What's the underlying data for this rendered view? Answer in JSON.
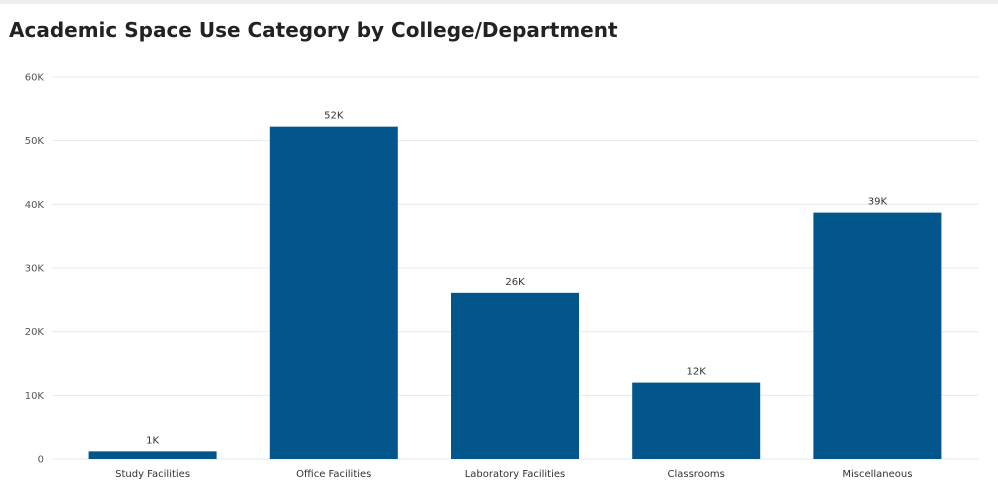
{
  "chart_data": {
    "type": "bar",
    "title": "Academic Space Use Category by College/Department",
    "categories": [
      "Study Facilities",
      "Office Facilities",
      "Laboratory Facilities",
      "Classrooms",
      "Miscellaneous"
    ],
    "values": [
      1200,
      52200,
      26100,
      12000,
      38700
    ],
    "data_labels": [
      "1K",
      "52K",
      "26K",
      "12K",
      "39K"
    ],
    "y_ticks": [
      0,
      10000,
      20000,
      30000,
      40000,
      50000,
      60000
    ],
    "y_tick_labels": [
      "0",
      "10K",
      "20K",
      "30K",
      "40K",
      "50K",
      "60K"
    ],
    "ylim": [
      0,
      60000
    ],
    "grid": true,
    "legend": "none",
    "bar_color": "#02568b",
    "grid_color": "#e9e9e9"
  }
}
